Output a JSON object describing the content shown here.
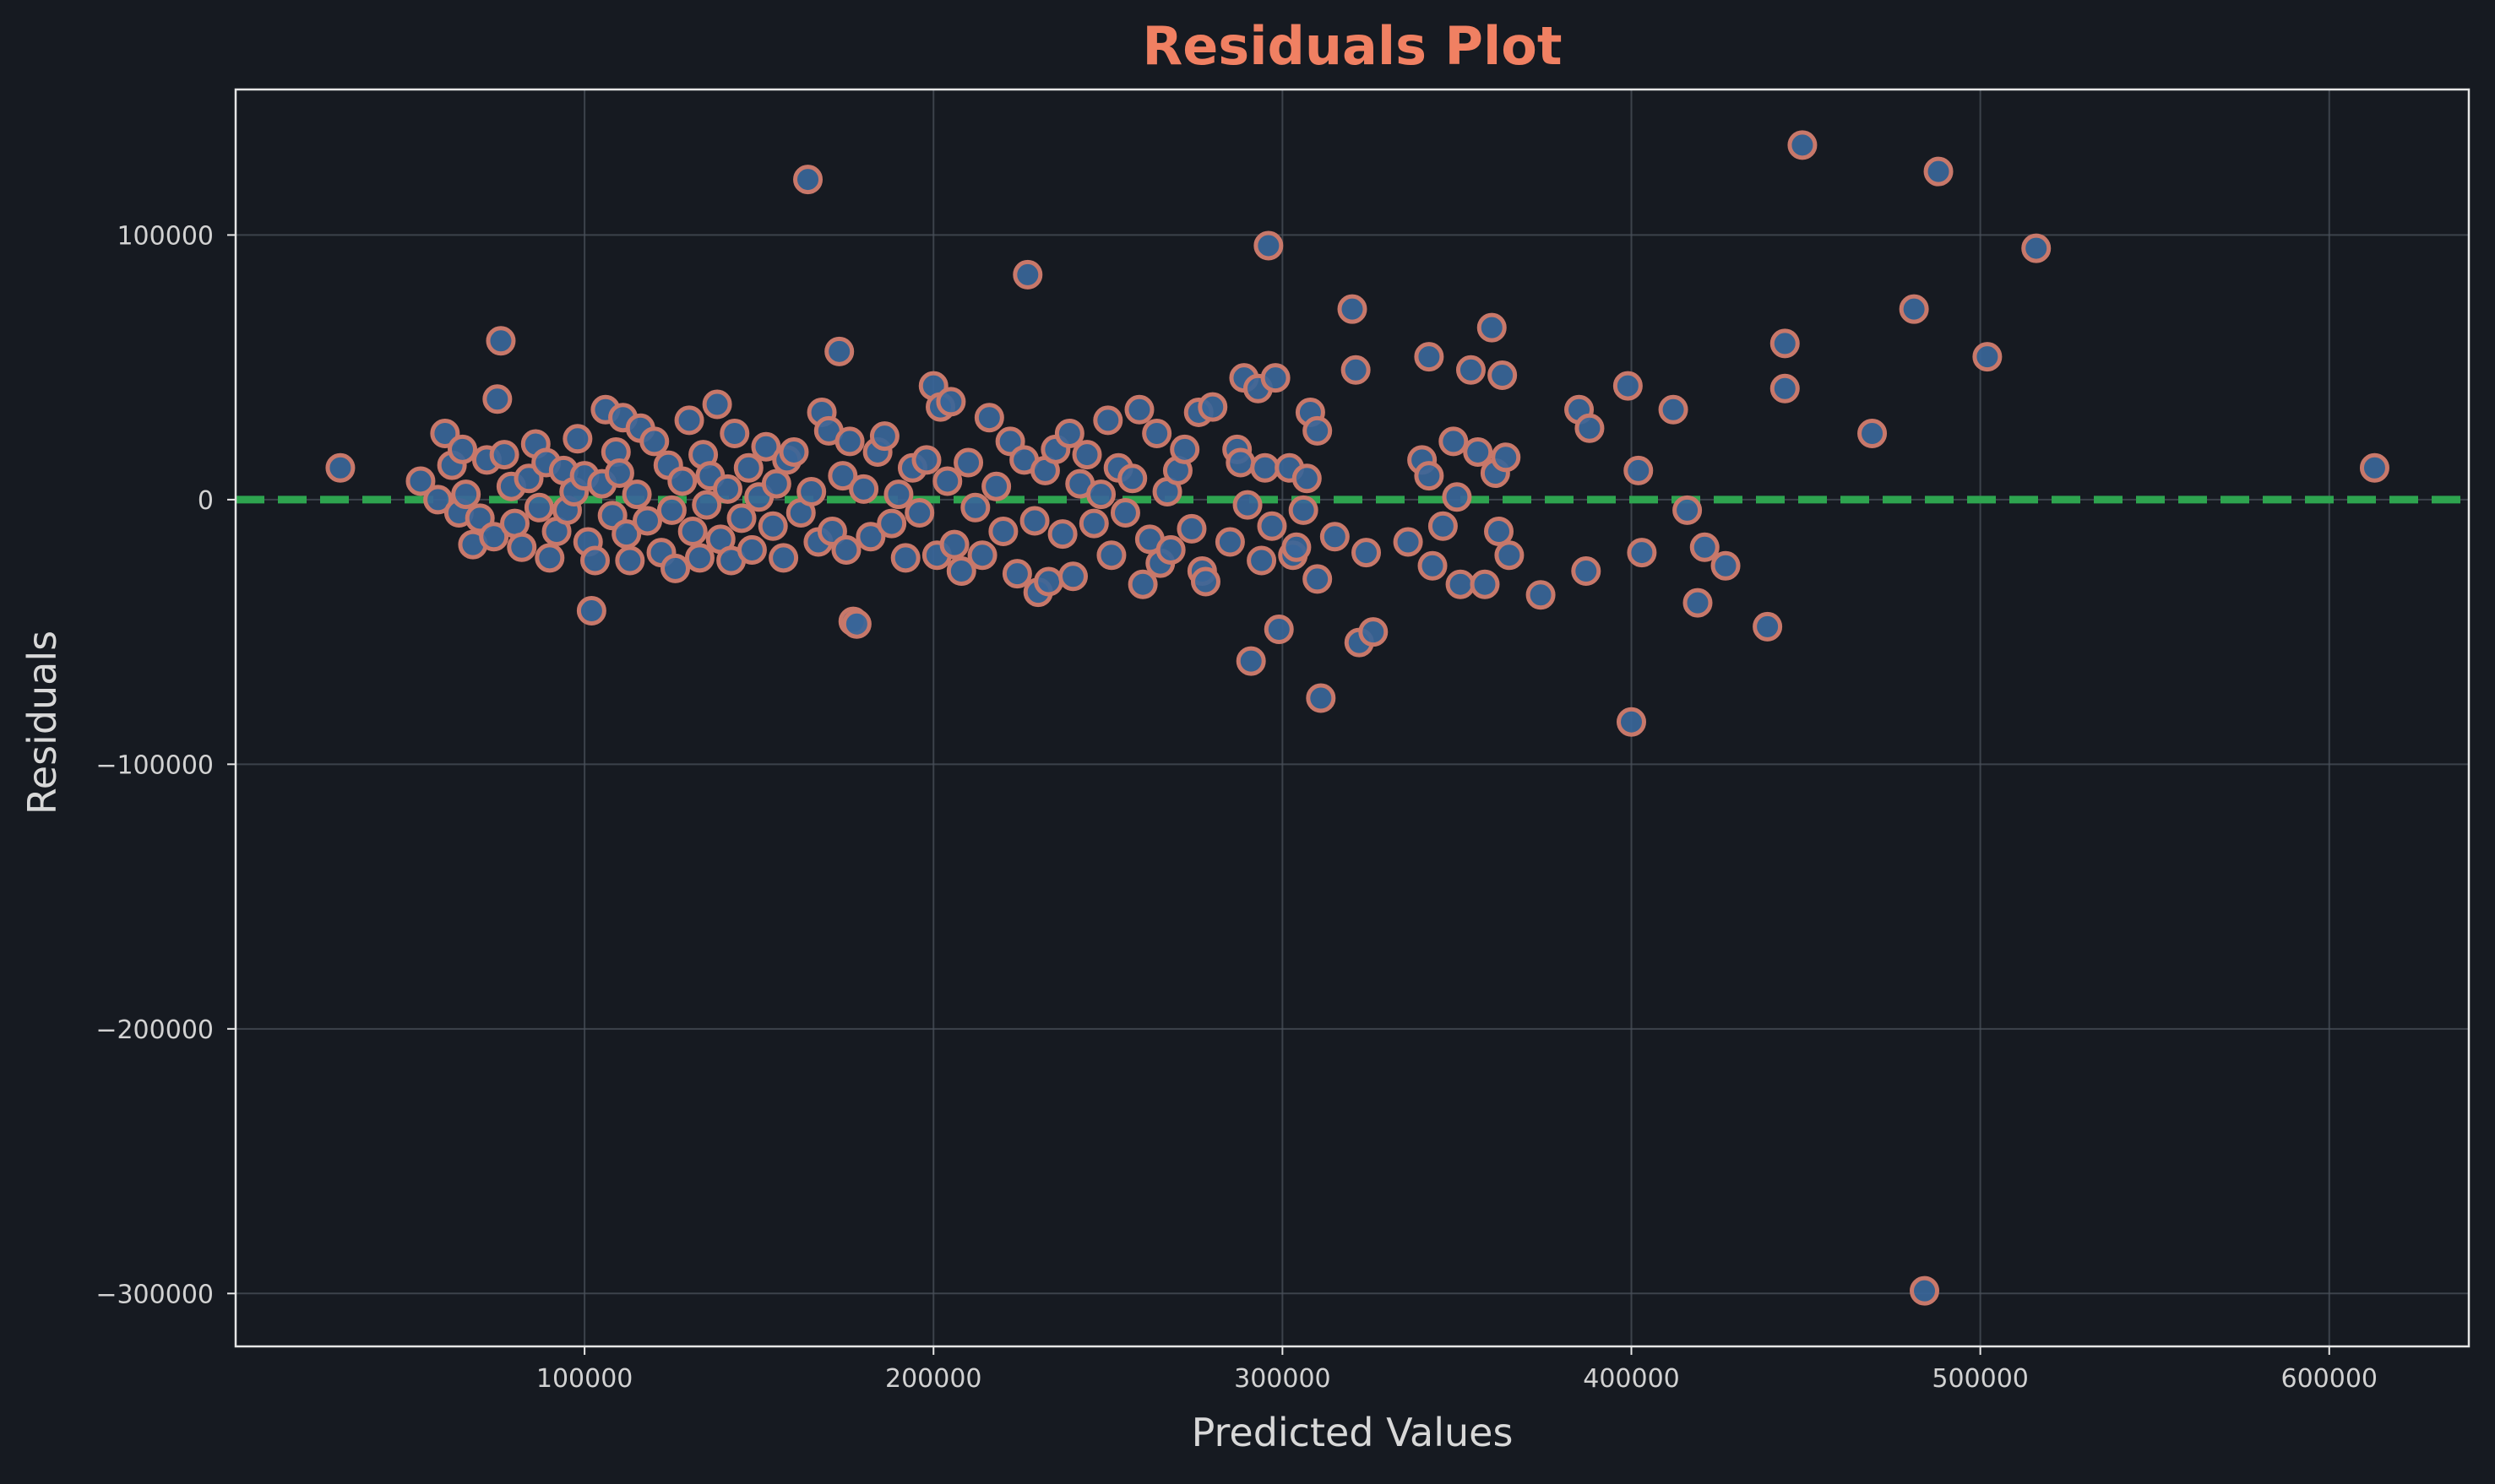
{
  "chart_data": {
    "type": "scatter",
    "title": "Residuals Plot",
    "xlabel": "Predicted Values",
    "ylabel": "Residuals",
    "xlim": [
      0,
      640000
    ],
    "ylim": [
      -320000,
      155000
    ],
    "x_ticks": [
      100000,
      200000,
      300000,
      400000,
      500000,
      600000
    ],
    "x_tick_labels": [
      "100000",
      "200000",
      "300000",
      "400000",
      "500000",
      "600000"
    ],
    "y_ticks": [
      100000,
      0,
      -100000,
      -200000,
      -300000
    ],
    "y_tick_labels": [
      "100000",
      "0",
      "−100000",
      "−200000",
      "−300000"
    ],
    "grid": true,
    "reference_line": {
      "y": 0,
      "style": "dashed"
    },
    "colors": {
      "background": "#161a21",
      "title": "#f08062",
      "marker_fill": "#3a6699",
      "marker_edge": "#c8786a",
      "reference_line": "#2ea44f",
      "grid": "#4a5059",
      "frame": "#e6e6e6"
    },
    "series": [
      {
        "name": "residuals",
        "points": [
          [
            30000,
            12000
          ],
          [
            53000,
            7000
          ],
          [
            58000,
            0
          ],
          [
            60000,
            25000
          ],
          [
            62000,
            13000
          ],
          [
            64000,
            -5000
          ],
          [
            65000,
            19000
          ],
          [
            66000,
            2000
          ],
          [
            68000,
            -17000
          ],
          [
            70000,
            -7000
          ],
          [
            72000,
            15000
          ],
          [
            74000,
            -14000
          ],
          [
            75000,
            38000
          ],
          [
            76000,
            60000
          ],
          [
            77000,
            17000
          ],
          [
            79000,
            5000
          ],
          [
            80000,
            -9000
          ],
          [
            82000,
            -18000
          ],
          [
            84000,
            8000
          ],
          [
            86000,
            21000
          ],
          [
            87000,
            -3000
          ],
          [
            89000,
            14000
          ],
          [
            90000,
            -22000
          ],
          [
            92000,
            -12000
          ],
          [
            94000,
            11000
          ],
          [
            95000,
            -4000
          ],
          [
            97000,
            3000
          ],
          [
            98000,
            23000
          ],
          [
            100000,
            9000
          ],
          [
            101000,
            -16000
          ],
          [
            102000,
            -42000
          ],
          [
            103000,
            -23000
          ],
          [
            105000,
            6000
          ],
          [
            106000,
            34000
          ],
          [
            108000,
            -6000
          ],
          [
            109000,
            18000
          ],
          [
            110000,
            10000
          ],
          [
            111000,
            31000
          ],
          [
            112000,
            -13000
          ],
          [
            113000,
            -23000
          ],
          [
            115000,
            2000
          ],
          [
            116000,
            27000
          ],
          [
            118000,
            -8000
          ],
          [
            120000,
            22000
          ],
          [
            122000,
            -20000
          ],
          [
            124000,
            13000
          ],
          [
            125000,
            -4000
          ],
          [
            126000,
            -26000
          ],
          [
            128000,
            7000
          ],
          [
            130000,
            30000
          ],
          [
            131000,
            -12000
          ],
          [
            133000,
            -22000
          ],
          [
            134000,
            17000
          ],
          [
            135000,
            -2000
          ],
          [
            136000,
            9000
          ],
          [
            138000,
            36000
          ],
          [
            139000,
            -15000
          ],
          [
            141000,
            4000
          ],
          [
            142000,
            -23000
          ],
          [
            143000,
            25000
          ],
          [
            145000,
            -7000
          ],
          [
            147000,
            12000
          ],
          [
            148000,
            -19000
          ],
          [
            150000,
            1000
          ],
          [
            152000,
            20000
          ],
          [
            154000,
            -10000
          ],
          [
            155000,
            6000
          ],
          [
            157000,
            -22000
          ],
          [
            158000,
            15000
          ],
          [
            160000,
            18000
          ],
          [
            162000,
            -5000
          ],
          [
            164000,
            121000
          ],
          [
            165000,
            3000
          ],
          [
            167000,
            -16000
          ],
          [
            168000,
            33000
          ],
          [
            170000,
            26000
          ],
          [
            171000,
            -12000
          ],
          [
            173000,
            56000
          ],
          [
            174000,
            9000
          ],
          [
            175000,
            -19000
          ],
          [
            176000,
            22000
          ],
          [
            177000,
            -46000
          ],
          [
            178000,
            -47000
          ],
          [
            180000,
            4000
          ],
          [
            182000,
            -14000
          ],
          [
            184000,
            18000
          ],
          [
            186000,
            24000
          ],
          [
            188000,
            -9000
          ],
          [
            190000,
            2000
          ],
          [
            192000,
            -22000
          ],
          [
            194000,
            12000
          ],
          [
            196000,
            -5000
          ],
          [
            198000,
            15000
          ],
          [
            200000,
            43000
          ],
          [
            201000,
            -21000
          ],
          [
            202000,
            35000
          ],
          [
            204000,
            7000
          ],
          [
            205000,
            37000
          ],
          [
            206000,
            -17000
          ],
          [
            208000,
            -27000
          ],
          [
            210000,
            14000
          ],
          [
            212000,
            -3000
          ],
          [
            214000,
            -21000
          ],
          [
            216000,
            31000
          ],
          [
            218000,
            5000
          ],
          [
            220000,
            -12000
          ],
          [
            222000,
            22000
          ],
          [
            224000,
            -28000
          ],
          [
            226000,
            15000
          ],
          [
            227000,
            85000
          ],
          [
            229000,
            -8000
          ],
          [
            230000,
            -35000
          ],
          [
            232000,
            11000
          ],
          [
            233000,
            -31000
          ],
          [
            235000,
            19000
          ],
          [
            237000,
            -13000
          ],
          [
            239000,
            25000
          ],
          [
            240000,
            -29000
          ],
          [
            242000,
            6000
          ],
          [
            244000,
            17000
          ],
          [
            246000,
            -9000
          ],
          [
            248000,
            2000
          ],
          [
            250000,
            30000
          ],
          [
            251000,
            -21000
          ],
          [
            253000,
            12000
          ],
          [
            255000,
            -5000
          ],
          [
            257000,
            8000
          ],
          [
            259000,
            34000
          ],
          [
            260000,
            -32000
          ],
          [
            262000,
            -15000
          ],
          [
            264000,
            25000
          ],
          [
            265000,
            -24000
          ],
          [
            267000,
            3000
          ],
          [
            268000,
            -19000
          ],
          [
            270000,
            11000
          ],
          [
            272000,
            19000
          ],
          [
            274000,
            -11000
          ],
          [
            276000,
            33000
          ],
          [
            277000,
            -27000
          ],
          [
            278000,
            -31000
          ],
          [
            280000,
            35000
          ],
          [
            285000,
            -16000
          ],
          [
            287000,
            19000
          ],
          [
            288000,
            14000
          ],
          [
            289000,
            46000
          ],
          [
            290000,
            -2000
          ],
          [
            291000,
            -61000
          ],
          [
            293000,
            42000
          ],
          [
            294000,
            -23000
          ],
          [
            295000,
            12000
          ],
          [
            296000,
            96000
          ],
          [
            297000,
            -10000
          ],
          [
            298000,
            46000
          ],
          [
            299000,
            -49000
          ],
          [
            302000,
            12000
          ],
          [
            303000,
            -21000
          ],
          [
            304000,
            -18000
          ],
          [
            306000,
            -4000
          ],
          [
            307000,
            8000
          ],
          [
            308000,
            33000
          ],
          [
            310000,
            26000
          ],
          [
            310000,
            -30000
          ],
          [
            311000,
            -75000
          ],
          [
            315000,
            -14000
          ],
          [
            320000,
            72000
          ],
          [
            321000,
            49000
          ],
          [
            322000,
            -54000
          ],
          [
            324000,
            -20000
          ],
          [
            326000,
            -50000
          ],
          [
            336000,
            -16000
          ],
          [
            340000,
            15000
          ],
          [
            342000,
            54000
          ],
          [
            342000,
            9000
          ],
          [
            343000,
            -25000
          ],
          [
            346000,
            -10000
          ],
          [
            349000,
            22000
          ],
          [
            350000,
            1000
          ],
          [
            351000,
            -32000
          ],
          [
            354000,
            49000
          ],
          [
            356000,
            18000
          ],
          [
            358000,
            -32000
          ],
          [
            360000,
            65000
          ],
          [
            361000,
            10000
          ],
          [
            362000,
            -12000
          ],
          [
            363000,
            47000
          ],
          [
            364000,
            16000
          ],
          [
            365000,
            -21000
          ],
          [
            374000,
            -36000
          ],
          [
            385000,
            34000
          ],
          [
            387000,
            -27000
          ],
          [
            388000,
            27000
          ],
          [
            399000,
            43000
          ],
          [
            400000,
            -84000
          ],
          [
            402000,
            11000
          ],
          [
            403000,
            -20000
          ],
          [
            412000,
            34000
          ],
          [
            416000,
            -4000
          ],
          [
            419000,
            -39000
          ],
          [
            421000,
            -18000
          ],
          [
            427000,
            -25000
          ],
          [
            439000,
            -48000
          ],
          [
            444000,
            59000
          ],
          [
            444000,
            42000
          ],
          [
            449000,
            134000
          ],
          [
            469000,
            25000
          ],
          [
            481000,
            72000
          ],
          [
            484000,
            -299000
          ],
          [
            488000,
            124000
          ],
          [
            502000,
            54000
          ],
          [
            516000,
            95000
          ],
          [
            613000,
            12000
          ]
        ]
      }
    ]
  }
}
